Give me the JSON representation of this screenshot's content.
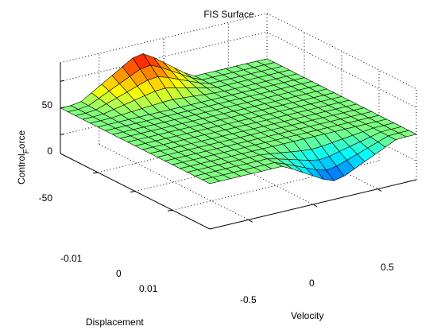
{
  "chart_data": {
    "type": "surface",
    "title": "FIS Surface",
    "xlabel": "Velocity",
    "ylabel": "Displacement",
    "zlabel_main": "Control",
    "zlabel_sub": "F",
    "zlabel_tail": "orce",
    "x_ticks": [
      "-0.5",
      "0",
      "0.5"
    ],
    "y_ticks": [
      "-0.01",
      "0",
      "0.01"
    ],
    "z_ticks": [
      "50",
      "0",
      "-50"
    ],
    "xlim": [
      -0.8,
      0.8
    ],
    "ylim": [
      -0.02,
      0.02
    ],
    "zlim": [
      -85,
      85
    ],
    "grid": true,
    "colormap": "jet",
    "surface": {
      "x_count": 21,
      "y_count": 21,
      "ridge_peak": 90,
      "trough_min": -78,
      "plateau": 0,
      "ridge_center": [
        -0.06,
        -0.016
      ],
      "trough_center": [
        0.05,
        0.017
      ]
    }
  }
}
